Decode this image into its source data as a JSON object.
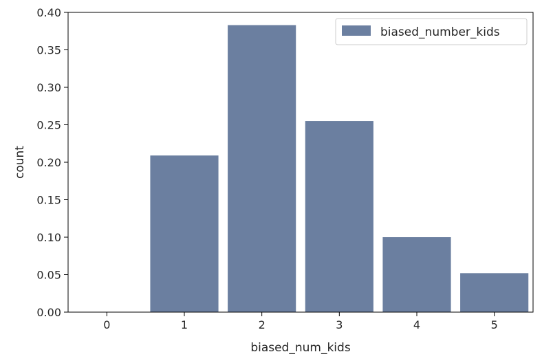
{
  "chart_data": {
    "type": "bar",
    "categories": [
      "0",
      "1",
      "2",
      "3",
      "4",
      "5"
    ],
    "series": [
      {
        "name": "biased_number_kids",
        "values": [
          0.0,
          0.209,
          0.383,
          0.255,
          0.1,
          0.052
        ],
        "color": "#6b7fa0"
      }
    ],
    "xlabel": "biased_num_kids",
    "ylabel": "count",
    "ylim": [
      0,
      0.4
    ],
    "yticks": [
      "0.00",
      "0.05",
      "0.10",
      "0.15",
      "0.20",
      "0.25",
      "0.30",
      "0.35",
      "0.40"
    ],
    "grid": false,
    "legend_position": "top-right"
  }
}
